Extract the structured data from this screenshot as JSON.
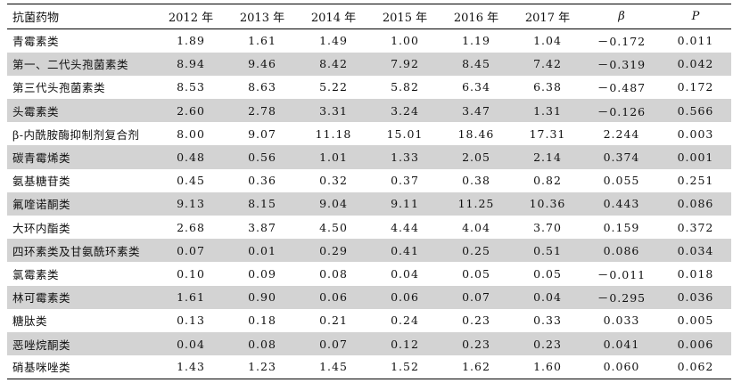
{
  "table": {
    "headers": [
      "抗菌药物",
      "2012 年",
      "2013 年",
      "2014 年",
      "2015 年",
      "2016 年",
      "2017 年",
      "β",
      "P"
    ],
    "rows": [
      {
        "name": "青霉素类",
        "values": [
          "1.89",
          "1.61",
          "1.49",
          "1.00",
          "1.19",
          "1.04",
          "－0.172",
          "0.011"
        ]
      },
      {
        "name": "第一、二代头孢菌素类",
        "values": [
          "8.94",
          "9.46",
          "8.42",
          "7.92",
          "8.45",
          "7.42",
          "－0.319",
          "0.042"
        ]
      },
      {
        "name": "第三代头孢菌素类",
        "values": [
          "8.53",
          "8.63",
          "5.22",
          "5.82",
          "6.34",
          "6.38",
          "－0.487",
          "0.172"
        ]
      },
      {
        "name": "头霉素类",
        "values": [
          "2.60",
          "2.78",
          "3.31",
          "3.24",
          "3.47",
          "1.31",
          "－0.126",
          "0.566"
        ]
      },
      {
        "name": "β-内酰胺酶抑制剂复合剂",
        "values": [
          "8.00",
          "9.07",
          "11.18",
          "15.01",
          "18.46",
          "17.31",
          "2.244",
          "0.003"
        ]
      },
      {
        "name": "碳青霉烯类",
        "values": [
          "0.48",
          "0.56",
          "1.01",
          "1.33",
          "2.05",
          "2.14",
          "0.374",
          "0.001"
        ]
      },
      {
        "name": "氨基糖苷类",
        "values": [
          "0.45",
          "0.36",
          "0.32",
          "0.37",
          "0.38",
          "0.82",
          "0.055",
          "0.251"
        ]
      },
      {
        "name": "氟喹诺酮类",
        "values": [
          "9.13",
          "8.15",
          "9.04",
          "9.11",
          "11.25",
          "10.36",
          "0.443",
          "0.086"
        ]
      },
      {
        "name": "大环内酯类",
        "values": [
          "2.68",
          "3.87",
          "4.50",
          "4.44",
          "4.04",
          "3.70",
          "0.159",
          "0.372"
        ]
      },
      {
        "name": "四环素类及甘氨酰环素类",
        "values": [
          "0.07",
          "0.01",
          "0.29",
          "0.41",
          "0.25",
          "0.51",
          "0.086",
          "0.034"
        ]
      },
      {
        "name": "氯霉素类",
        "values": [
          "0.10",
          "0.09",
          "0.08",
          "0.04",
          "0.05",
          "0.05",
          "－0.011",
          "0.018"
        ]
      },
      {
        "name": "林可霉素类",
        "values": [
          "1.61",
          "0.90",
          "0.06",
          "0.06",
          "0.07",
          "0.04",
          "－0.295",
          "0.036"
        ]
      },
      {
        "name": "糖肽类",
        "values": [
          "0.13",
          "0.18",
          "0.21",
          "0.24",
          "0.23",
          "0.33",
          "0.033",
          "0.005"
        ]
      },
      {
        "name": "恶唑烷酮类",
        "values": [
          "0.04",
          "0.08",
          "0.07",
          "0.12",
          "0.23",
          "0.23",
          "0.041",
          "0.006"
        ]
      },
      {
        "name": "硝基咪唑类",
        "values": [
          "1.43",
          "1.23",
          "1.45",
          "1.52",
          "1.62",
          "1.60",
          "0.060",
          "0.062"
        ]
      }
    ]
  }
}
